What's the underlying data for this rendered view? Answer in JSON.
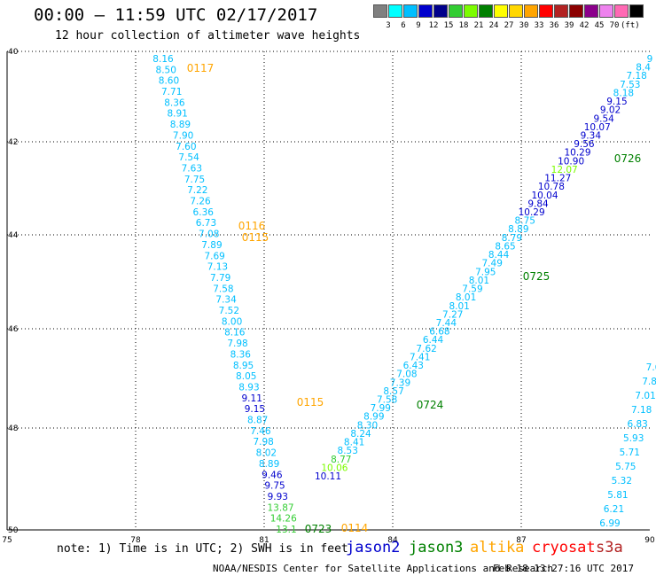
{
  "header": {
    "title": "00:00 — 11:59 UTC 02/17/2017",
    "subtitle": "12 hour collection of altimeter wave heights"
  },
  "colorbar": {
    "colors": [
      "#808080",
      "#00ffff",
      "#00bfff",
      "#0000cd",
      "#00008b",
      "#32cd32",
      "#7cfc00",
      "#008000",
      "#ffff00",
      "#ffd700",
      "#ffa500",
      "#ff0000",
      "#b22222",
      "#8b0000",
      "#8b008b",
      "#ee82ee",
      "#ff69b4",
      "#000000"
    ],
    "labels": [
      "3",
      "6",
      "9",
      "12",
      "15",
      "18",
      "21",
      "24",
      "27",
      "30",
      "33",
      "36",
      "39",
      "42",
      "45",
      "70",
      "(ft)"
    ]
  },
  "map": {
    "lon_ticks": [
      "75",
      "78",
      "81",
      "84",
      "87",
      "90"
    ],
    "lat_ticks": [
      "40",
      "42",
      "44",
      "46",
      "48",
      "50"
    ],
    "tracks": [
      {
        "satellite": "jason2",
        "values": [
          "8.16",
          "8.50",
          "8.60",
          "7.71",
          "8.36",
          "8.91",
          "8.89",
          "7.90",
          "7.60",
          "7.54",
          "7.63",
          "7.75",
          "7.22",
          "7.26",
          "6.36",
          "6.73",
          "7.08",
          "7.89",
          "7.69",
          "7.13",
          "7.79",
          "7.58",
          "7.34",
          "7.52",
          "8.00",
          "8.16",
          "7.98",
          "8.36",
          "8.95",
          "8.05",
          "8.93",
          "9.11",
          "9.15",
          "8.87",
          "7.46",
          "7.98",
          "8.02",
          "8.89",
          "9.46",
          "9.75",
          "9.93",
          "13.87",
          "14.26",
          "13.1"
        ],
        "colors": [
          "#00bfff",
          "#00bfff",
          "#00bfff",
          "#00bfff",
          "#00bfff",
          "#00bfff",
          "#00bfff",
          "#00bfff",
          "#00bfff",
          "#00bfff",
          "#00bfff",
          "#00bfff",
          "#00bfff",
          "#00bfff",
          "#00bfff",
          "#00bfff",
          "#00bfff",
          "#00bfff",
          "#00bfff",
          "#00bfff",
          "#00bfff",
          "#00bfff",
          "#00bfff",
          "#00bfff",
          "#00bfff",
          "#00bfff",
          "#00bfff",
          "#00bfff",
          "#00bfff",
          "#00bfff",
          "#00bfff",
          "#0000cd",
          "#0000cd",
          "#00bfff",
          "#00bfff",
          "#00bfff",
          "#00bfff",
          "#00bfff",
          "#0000cd",
          "#0000cd",
          "#0000cd",
          "#32cd32",
          "#32cd32",
          "#32cd32"
        ]
      },
      {
        "satellite": "jason3",
        "values": [
          "10.11",
          "10.06",
          "8.77",
          "8.53",
          "8.41",
          "8.24",
          "8.30",
          "8.99",
          "7.99",
          "7.58",
          "8.57",
          "7.39",
          "7.08",
          "6.43",
          "7.41",
          "7.62",
          "6.44",
          "6.68",
          "7.44",
          "7.27",
          "8.01",
          "8.01",
          "7.59",
          "8.01",
          "7.95",
          "7.49",
          "8.44",
          "8.65",
          "8.79",
          "8.89",
          "8.75",
          "10.29",
          "9.84",
          "10.04",
          "10.78",
          "11.27",
          "12.07",
          "10.90",
          "10.29",
          "9.56",
          "9.34",
          "10.07",
          "9.54",
          "9.02",
          "9.15",
          "8.18",
          "7.53",
          "7.18",
          "8.4",
          "9"
        ],
        "colors": [
          "#0000cd",
          "#7cfc00",
          "#32cd32",
          "#00bfff",
          "#00bfff",
          "#00bfff",
          "#00bfff",
          "#00bfff",
          "#00bfff",
          "#00bfff",
          "#00bfff",
          "#00bfff",
          "#00bfff",
          "#00bfff",
          "#00bfff",
          "#00bfff",
          "#00bfff",
          "#00bfff",
          "#00bfff",
          "#00bfff",
          "#00bfff",
          "#00bfff",
          "#00bfff",
          "#00bfff",
          "#00bfff",
          "#00bfff",
          "#00bfff",
          "#00bfff",
          "#00bfff",
          "#00bfff",
          "#00bfff",
          "#0000cd",
          "#0000cd",
          "#0000cd",
          "#0000cd",
          "#0000cd",
          "#7cfc00",
          "#0000cd",
          "#0000cd",
          "#0000cd",
          "#0000cd",
          "#0000cd",
          "#0000cd",
          "#0000cd",
          "#0000cd",
          "#00bfff",
          "#00bfff",
          "#00bfff",
          "#00bfff",
          "#00bfff"
        ]
      },
      {
        "satellite": "jason2-east",
        "values": [
          "6.99",
          "6.21",
          "5.81",
          "5.32",
          "5.75",
          "5.71",
          "5.93",
          "6.83",
          "7.18",
          "7.01",
          "7.8",
          "7.6"
        ],
        "colors": [
          "#00bfff",
          "#00bfff",
          "#00bfff",
          "#00bfff",
          "#00bfff",
          "#00bfff",
          "#00bfff",
          "#00bfff",
          "#00bfff",
          "#00bfff",
          "#00bfff",
          "#00bfff"
        ]
      }
    ],
    "time_labels": [
      {
        "text": "0117",
        "color": "#ffa500"
      },
      {
        "text": "0116",
        "color": "#ffa500"
      },
      {
        "text": "0115",
        "color": "#ffa500"
      },
      {
        "text": "0115",
        "color": "#ffa500"
      },
      {
        "text": "0114",
        "color": "#ffa500"
      },
      {
        "text": "0723",
        "color": "#008000"
      },
      {
        "text": "0724",
        "color": "#008000"
      },
      {
        "text": "0725",
        "color": "#008000"
      },
      {
        "text": "0726",
        "color": "#008000"
      }
    ]
  },
  "legend": {
    "note": "note: 1) Time is in UTC; 2) SWH is in feet",
    "satellites": [
      {
        "name": "jason2",
        "color": "#0000cd"
      },
      {
        "name": "jason3",
        "color": "#008000"
      },
      {
        "name": "altika",
        "color": "#ffa500"
      },
      {
        "name": "cryosat",
        "color": "#ff0000"
      },
      {
        "name": "s3a",
        "color": "#b22222"
      }
    ]
  },
  "footer": {
    "credit": "NOAA/NESDIS Center for Satellite Applications and Research",
    "timestamp": "Feb 18 13:27:16 UTC 2017"
  }
}
